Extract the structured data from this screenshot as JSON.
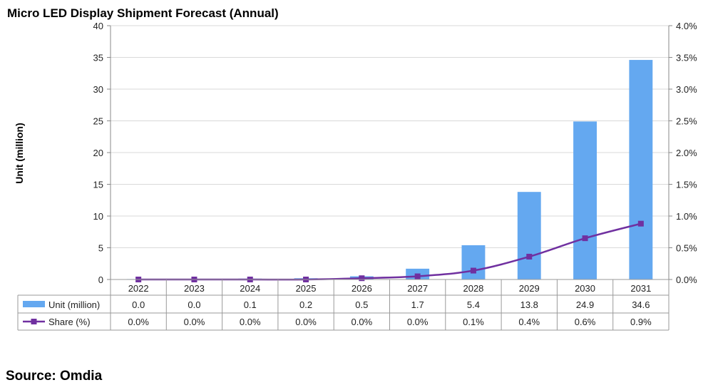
{
  "source": "Source: Omdia",
  "chart_data": {
    "type": "bar",
    "title": "Micro LED Display Shipment Forecast (Annual)",
    "ylabel": "Unit (million)",
    "ylim": [
      0,
      40
    ],
    "y_ticks": [
      "0",
      "5",
      "10",
      "15",
      "20",
      "25",
      "30",
      "35",
      "40"
    ],
    "y2lim": [
      0,
      4.0
    ],
    "y2_ticks": [
      "0.0%",
      "0.5%",
      "1.0%",
      "1.5%",
      "2.0%",
      "2.5%",
      "3.0%",
      "3.5%",
      "4.0%"
    ],
    "grid": true,
    "legend": "data-table",
    "categories": [
      "2022",
      "2023",
      "2024",
      "2025",
      "2026",
      "2027",
      "2028",
      "2029",
      "2030",
      "2031"
    ],
    "series": [
      {
        "name": "Unit (million)",
        "type": "bar",
        "axis": "left",
        "color": "#64a8f0",
        "values": [
          0.0,
          0.0,
          0.1,
          0.2,
          0.5,
          1.7,
          5.4,
          13.8,
          24.9,
          34.6
        ],
        "labels": [
          "0.0",
          "0.0",
          "0.1",
          "0.2",
          "0.5",
          "1.7",
          "5.4",
          "13.8",
          "24.9",
          "34.6"
        ]
      },
      {
        "name": "Share (%)",
        "type": "line",
        "axis": "right",
        "color": "#7030a0",
        "values": [
          0.0,
          0.0,
          0.0,
          0.0,
          0.02,
          0.05,
          0.14,
          0.36,
          0.65,
          0.88
        ],
        "labels": [
          "0.0%",
          "0.0%",
          "0.0%",
          "0.0%",
          "0.0%",
          "0.0%",
          "0.1%",
          "0.4%",
          "0.6%",
          "0.9%"
        ]
      }
    ]
  }
}
